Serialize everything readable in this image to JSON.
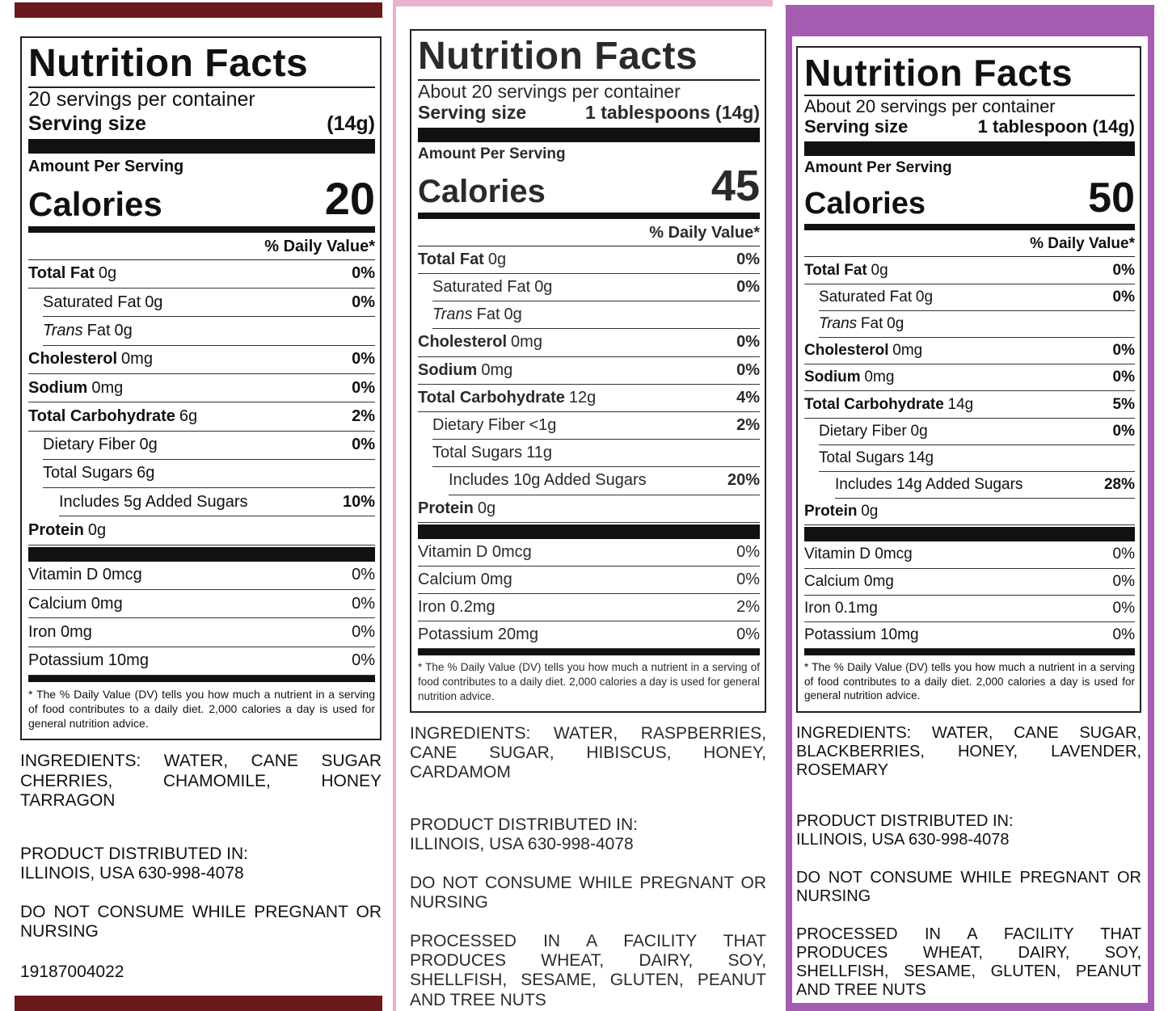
{
  "panels": [
    {
      "title": "Nutrition Facts",
      "servings": "20 servings per container",
      "serving_size_label": "Serving size",
      "serving_size": "(14g)",
      "amount_per_serving": "Amount Per Serving",
      "calories_label": "Calories",
      "calories": "20",
      "daily_value_header": "% Daily Value*",
      "nutrients": [
        {
          "name": "Total Fat",
          "amount": "0g",
          "dv": "0%",
          "bold": true,
          "indent": 0
        },
        {
          "name": "Saturated Fat",
          "amount": "0g",
          "dv": "0%",
          "bold": false,
          "indent": 1
        },
        {
          "italic": "Trans",
          "name": "Fat",
          "amount": "0g",
          "bold": false,
          "indent": 1
        },
        {
          "name": "Cholesterol",
          "amount": "0mg",
          "dv": "0%",
          "bold": true,
          "indent": 0
        },
        {
          "name": "Sodium",
          "amount": "0mg",
          "dv": "0%",
          "bold": true,
          "indent": 0
        },
        {
          "name": "Total Carbohydrate",
          "amount": "6g",
          "dv": "2%",
          "bold": true,
          "indent": 0
        },
        {
          "name": "Dietary Fiber",
          "amount": "0g",
          "dv": "0%",
          "bold": false,
          "indent": 1
        },
        {
          "name": "Total Sugars",
          "amount": "6g",
          "bold": false,
          "indent": 1
        },
        {
          "name": "Includes 5g Added Sugars",
          "dv": "10%",
          "bold": false,
          "indent": 2
        },
        {
          "name": "Protein",
          "amount": "0g",
          "bold": true,
          "indent": 0
        }
      ],
      "vitamins": [
        {
          "name": "Vitamin D 0mcg",
          "dv": "0%"
        },
        {
          "name": "Calcium 0mg",
          "dv": "0%"
        },
        {
          "name": "Iron 0mg",
          "dv": "0%"
        },
        {
          "name": "Potassium 10mg",
          "dv": "0%"
        }
      ],
      "footnote": "* The % Daily Value (DV) tells you how much a nutrient in a serving of food contributes to a daily diet. 2,000 calories a day is used for general nutrition advice.",
      "ingredients": "INGREDIENTS: WATER, CANE SUGAR CHERRIES, CHAMOMILE, HONEY TARRAGON",
      "distributed": [
        "PRODUCT DISTRIBUTED IN:",
        "ILLINOIS, USA 630-998-4078"
      ],
      "warning": "DO NOT CONSUME WHILE PREGNANT OR NURSING",
      "code": "19187004022"
    },
    {
      "title": "Nutrition Facts",
      "servings": "About 20 servings per container",
      "serving_size_label": "Serving size",
      "serving_size": "1 tablespoons (14g)",
      "amount_per_serving": "Amount Per Serving",
      "calories_label": "Calories",
      "calories": "45",
      "daily_value_header": "% Daily Value*",
      "nutrients": [
        {
          "name": "Total Fat",
          "amount": "0g",
          "dv": "0%",
          "bold": true,
          "indent": 0
        },
        {
          "name": "Saturated Fat",
          "amount": "0g",
          "dv": "0%",
          "bold": false,
          "indent": 1
        },
        {
          "italic": "Trans",
          "name": "Fat",
          "amount": "0g",
          "bold": false,
          "indent": 1
        },
        {
          "name": "Cholesterol",
          "amount": "0mg",
          "dv": "0%",
          "bold": true,
          "indent": 0
        },
        {
          "name": "Sodium",
          "amount": "0mg",
          "dv": "0%",
          "bold": true,
          "indent": 0
        },
        {
          "name": "Total Carbohydrate",
          "amount": "12g",
          "dv": "4%",
          "bold": true,
          "indent": 0
        },
        {
          "name": "Dietary Fiber",
          "amount": "<1g",
          "dv": "2%",
          "bold": false,
          "indent": 1
        },
        {
          "name": "Total Sugars",
          "amount": "11g",
          "bold": false,
          "indent": 1
        },
        {
          "name": "Includes 10g Added Sugars",
          "dv": "20%",
          "bold": false,
          "indent": 2
        },
        {
          "name": "Protein",
          "amount": "0g",
          "bold": true,
          "indent": 0
        }
      ],
      "vitamins": [
        {
          "name": "Vitamin D 0mcg",
          "dv": "0%"
        },
        {
          "name": "Calcium 0mg",
          "dv": "0%"
        },
        {
          "name": "Iron 0.2mg",
          "dv": "2%"
        },
        {
          "name": "Potassium 20mg",
          "dv": "0%"
        }
      ],
      "footnote": "* The % Daily Value (DV) tells you how much a nutrient in a serving of food contributes to a daily diet. 2,000 calories a day is used for general nutrition advice.",
      "ingredients": "INGREDIENTS: WATER, RASPBERRIES, CANE SUGAR, HIBISCUS, HONEY, CARDAMOM",
      "distributed": [
        "PRODUCT DISTRIBUTED IN:",
        "ILLINOIS, USA 630-998-4078"
      ],
      "warning": "DO NOT CONSUME WHILE PREGNANT OR NURSING",
      "processed": "PROCESSED IN A FACILITY THAT PRODUCES WHEAT, DAIRY, SOY, SHELLFISH, SESAME, GLUTEN, PEANUT AND TREE NUTS"
    },
    {
      "title": "Nutrition Facts",
      "servings": "About 20 servings per container",
      "serving_size_label": "Serving size",
      "serving_size": "1 tablespoon (14g)",
      "amount_per_serving": "Amount Per Serving",
      "calories_label": "Calories",
      "calories": "50",
      "daily_value_header": "% Daily Value*",
      "nutrients": [
        {
          "name": "Total Fat",
          "amount": "0g",
          "dv": "0%",
          "bold": true,
          "indent": 0
        },
        {
          "name": "Saturated Fat",
          "amount": "0g",
          "dv": "0%",
          "bold": false,
          "indent": 1
        },
        {
          "italic": "Trans",
          "name": "Fat",
          "amount": "0g",
          "bold": false,
          "indent": 1
        },
        {
          "name": "Cholesterol",
          "amount": "0mg",
          "dv": "0%",
          "bold": true,
          "indent": 0
        },
        {
          "name": "Sodium",
          "amount": "0mg",
          "dv": "0%",
          "bold": true,
          "indent": 0
        },
        {
          "name": "Total Carbohydrate",
          "amount": "14g",
          "dv": "5%",
          "bold": true,
          "indent": 0
        },
        {
          "name": "Dietary Fiber",
          "amount": "0g",
          "dv": "0%",
          "bold": false,
          "indent": 1
        },
        {
          "name": "Total Sugars",
          "amount": "14g",
          "bold": false,
          "indent": 1
        },
        {
          "name": "Includes 14g Added Sugars",
          "dv": "28%",
          "bold": false,
          "indent": 2
        },
        {
          "name": "Protein",
          "amount": "0g",
          "bold": true,
          "indent": 0
        }
      ],
      "vitamins": [
        {
          "name": "Vitamin D 0mcg",
          "dv": "0%"
        },
        {
          "name": "Calcium 0mg",
          "dv": "0%"
        },
        {
          "name": "Iron 0.1mg",
          "dv": "0%"
        },
        {
          "name": "Potassium 10mg",
          "dv": "0%"
        }
      ],
      "footnote": "* The % Daily Value (DV) tells you how much a nutrient in a serving of food contributes to a daily diet. 2,000 calories a day is used for general nutrition advice.",
      "ingredients": "INGREDIENTS: WATER, CANE SUGAR, BLACKBERRIES, HONEY, LAVENDER, ROSEMARY",
      "distributed": [
        "PRODUCT DISTRIBUTED IN:",
        "ILLINOIS, USA 630-998-4078"
      ],
      "warning": "DO NOT CONSUME WHILE PREGNANT OR NURSING",
      "processed": "PROCESSED IN A FACILITY THAT PRODUCES WHEAT, DAIRY, SOY, SHELLFISH, SESAME, GLUTEN, PEANUT AND TREE NUTS"
    }
  ]
}
